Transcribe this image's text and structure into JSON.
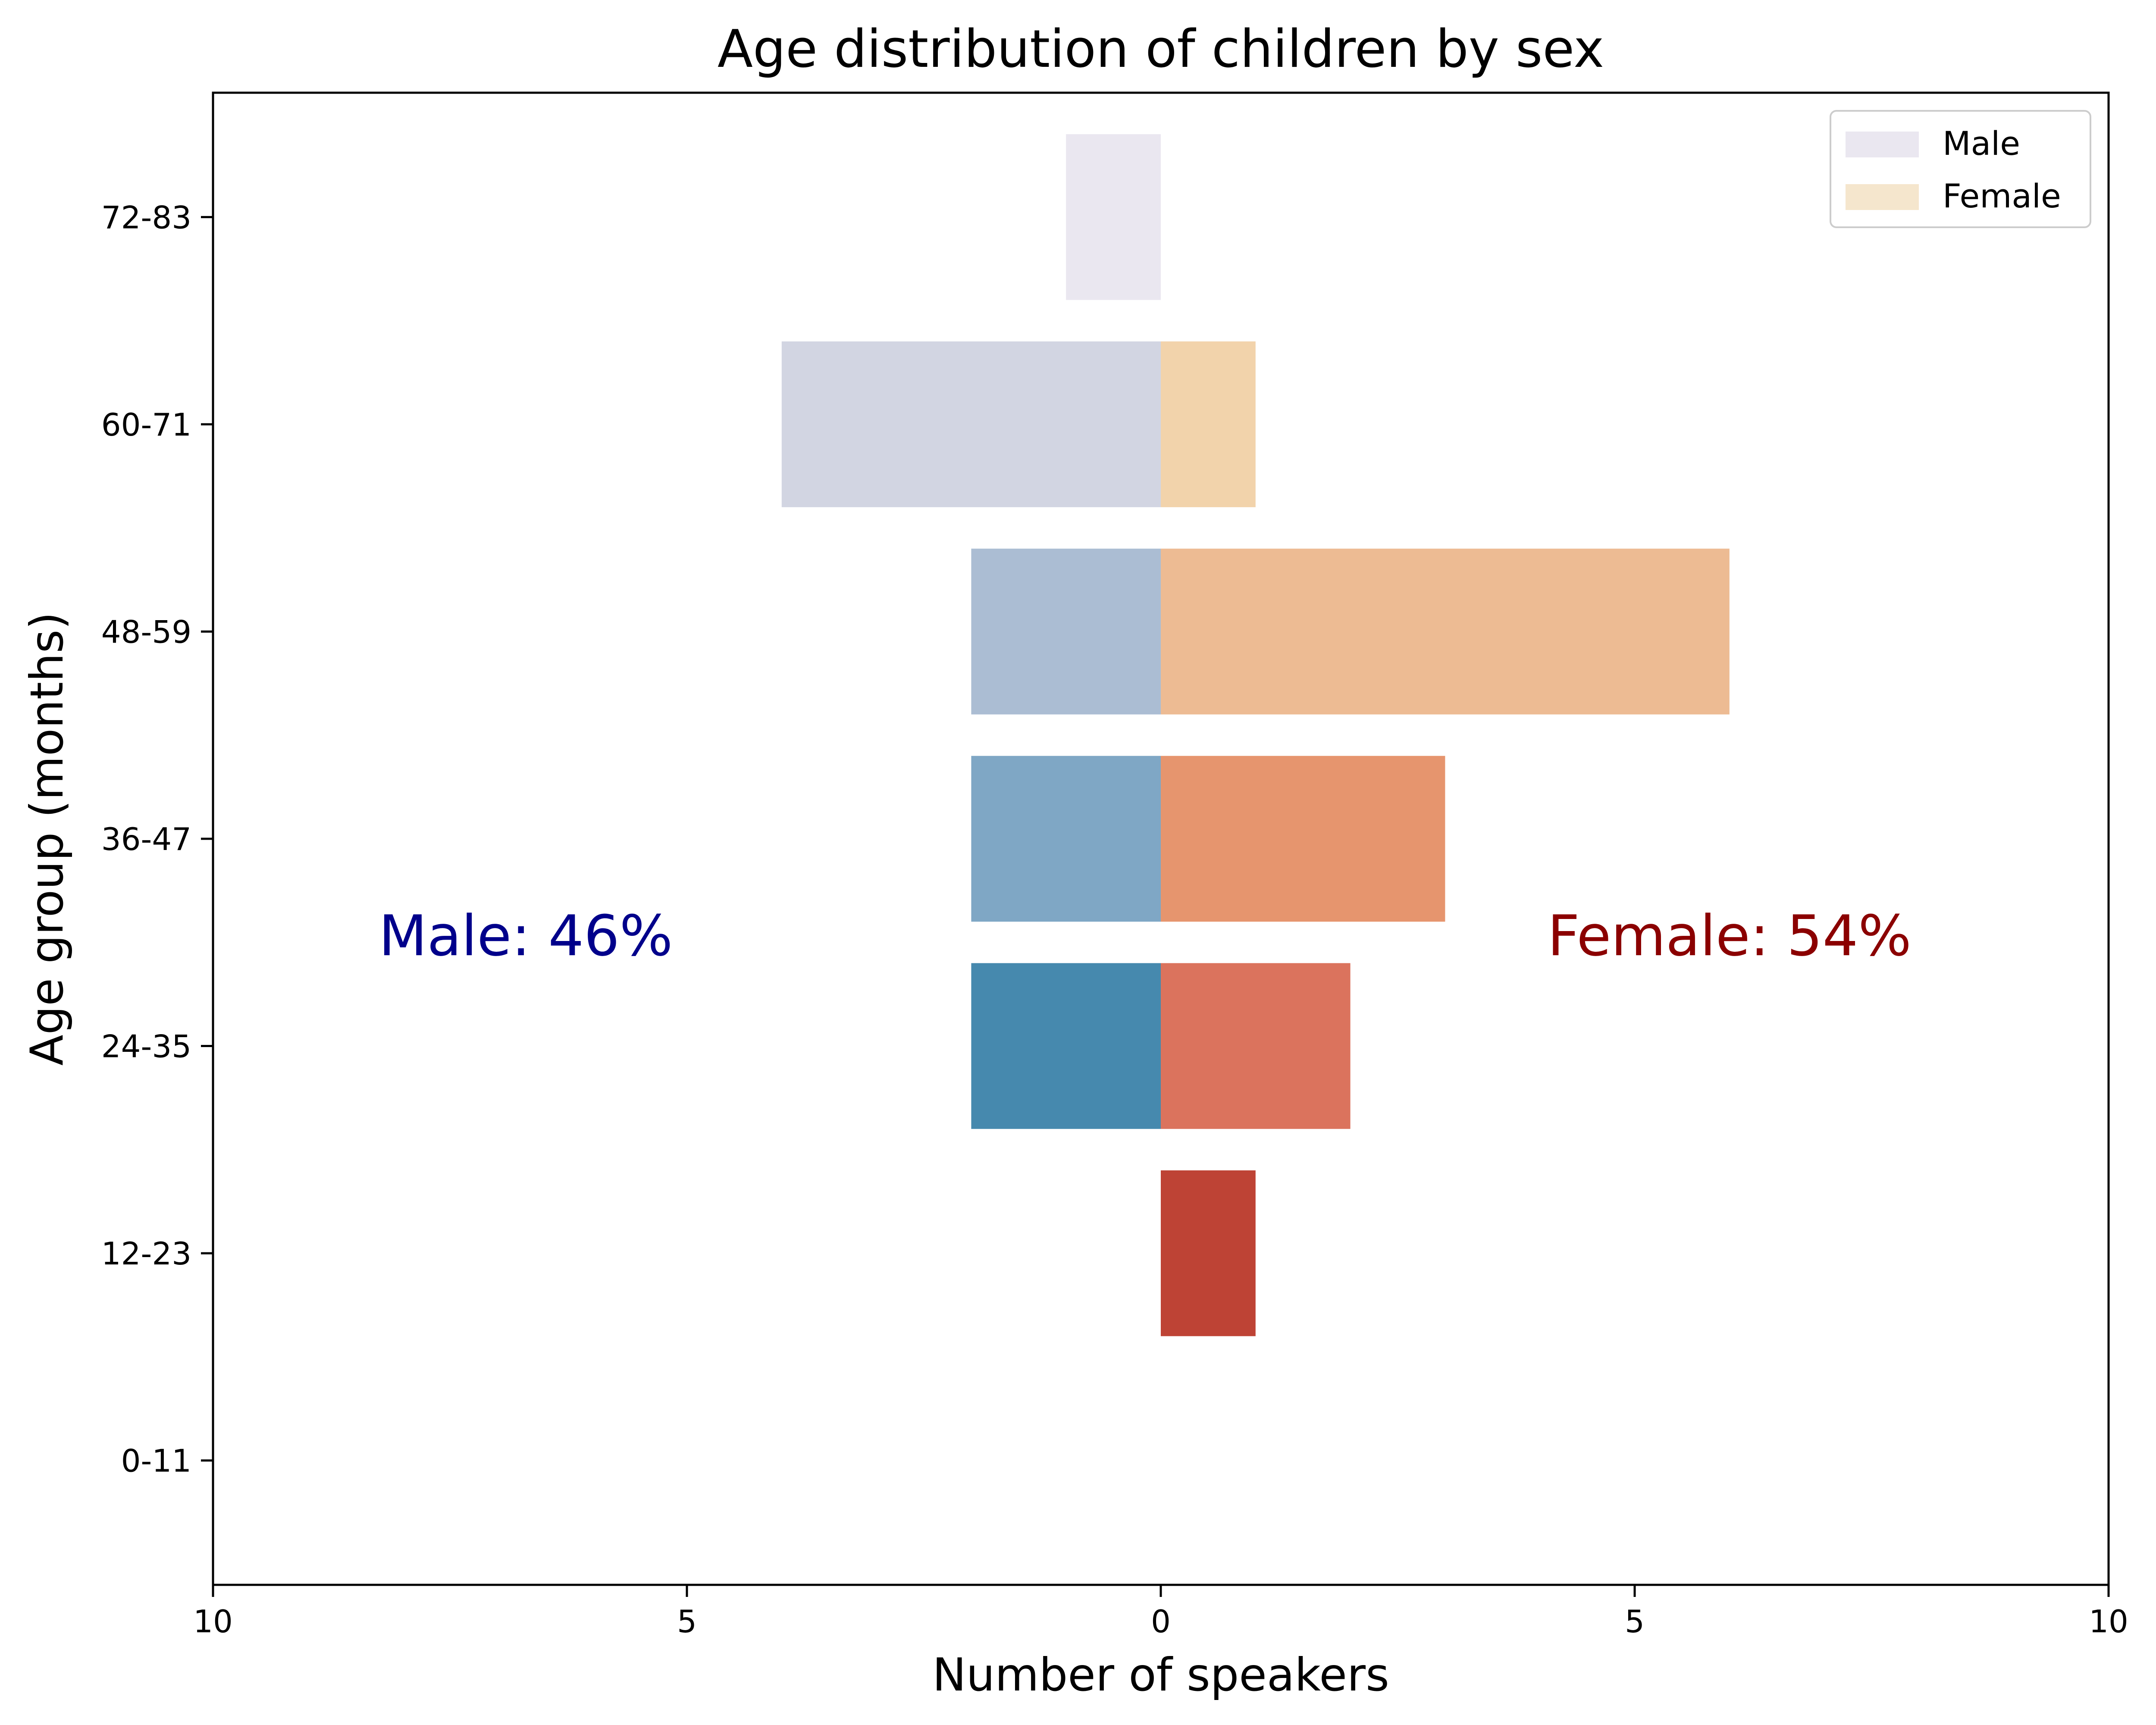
{
  "chart_data": {
    "type": "bar",
    "orientation": "horizontal",
    "variant": "population-pyramid",
    "title": "Age distribution of children by sex",
    "xlabel": "Number of speakers",
    "ylabel": "Age group (months)",
    "xlim": [
      -10,
      10
    ],
    "xticks": [
      -10,
      -5,
      0,
      5,
      10
    ],
    "xtick_labels": [
      "10",
      "5",
      "0",
      "5",
      "10"
    ],
    "categories": [
      "0-11",
      "12-23",
      "24-35",
      "36-47",
      "48-59",
      "60-71",
      "72-83"
    ],
    "series": [
      {
        "name": "Male",
        "side": "left",
        "values": [
          0,
          0,
          2,
          2,
          2,
          4,
          1
        ],
        "colors": [
          "#2166ac",
          "#2166ac",
          "#4689ae",
          "#7fa7c5",
          "#abbdd3",
          "#d2d5e2",
          "#eae7f0"
        ]
      },
      {
        "name": "Female",
        "side": "right",
        "values": [
          0,
          1,
          2,
          3,
          6,
          1,
          0
        ],
        "colors": [
          "#b2182b",
          "#be4335",
          "#db735d",
          "#e6956e",
          "#edbb93",
          "#f2d3ab",
          "#f5e6cd"
        ]
      }
    ],
    "legend": {
      "placement": "upper right",
      "entries": [
        {
          "label": "Male",
          "color": "#eae7f0"
        },
        {
          "label": "Female",
          "color": "#f5e6cd"
        }
      ]
    },
    "annotations": [
      {
        "text": "Male: 46%",
        "color": "#00008b",
        "x": -6.7,
        "category": "36-47"
      },
      {
        "text": "Female: 54%",
        "color": "#8b0000",
        "x": 6.0,
        "category": "36-47"
      }
    ],
    "grid": false
  }
}
